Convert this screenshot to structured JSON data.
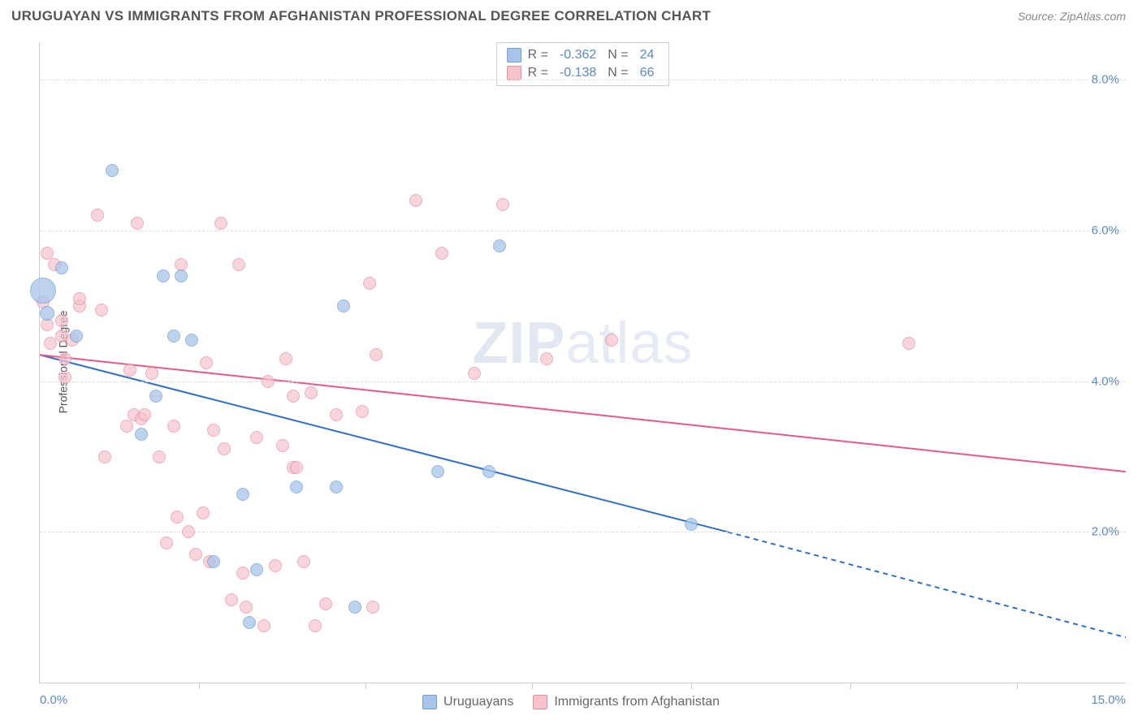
{
  "header": {
    "title": "URUGUAYAN VS IMMIGRANTS FROM AFGHANISTAN PROFESSIONAL DEGREE CORRELATION CHART",
    "source": "Source: ZipAtlas.com"
  },
  "chart": {
    "type": "scatter",
    "ylabel": "Professional Degree",
    "xlim": [
      0,
      15
    ],
    "ylim": [
      0,
      8.5
    ],
    "xtick_labels": {
      "left": "0.0%",
      "right": "15.0%"
    },
    "xtick_positions": [
      2.2,
      4.5,
      6.8,
      9.0,
      11.2,
      13.5
    ],
    "ytick_positions": [
      2.0,
      4.0,
      6.0,
      8.0
    ],
    "ytick_labels": [
      "2.0%",
      "4.0%",
      "6.0%",
      "8.0%"
    ],
    "grid_color": "#dddddd",
    "axis_color": "#cccccc",
    "background_color": "#ffffff",
    "tick_label_color": "#5b8ac5",
    "ylabel_color": "#555555",
    "watermark": {
      "bold": "ZIP",
      "thin": "atlas",
      "color": "#c9d6e8"
    }
  },
  "series": {
    "blue": {
      "label": "Uruguayans",
      "fill": "#a8c5e8",
      "stroke": "#6f9fd6",
      "opacity": 0.75,
      "trend": {
        "color": "#2e6fc9",
        "width": 2,
        "x1": 0,
        "y1": 4.35,
        "x2_solid": 9.5,
        "y2_solid": 2.0,
        "x2_dash": 15,
        "y2_dash": 0.6
      },
      "points": [
        {
          "x": 0.05,
          "y": 5.2,
          "r": 16
        },
        {
          "x": 0.1,
          "y": 4.9,
          "r": 9
        },
        {
          "x": 0.3,
          "y": 5.5,
          "r": 8
        },
        {
          "x": 0.5,
          "y": 4.6,
          "r": 8
        },
        {
          "x": 1.0,
          "y": 6.8,
          "r": 8
        },
        {
          "x": 1.4,
          "y": 3.3,
          "r": 8
        },
        {
          "x": 1.6,
          "y": 3.8,
          "r": 8
        },
        {
          "x": 1.7,
          "y": 5.4,
          "r": 8
        },
        {
          "x": 1.85,
          "y": 4.6,
          "r": 8
        },
        {
          "x": 1.95,
          "y": 5.4,
          "r": 8
        },
        {
          "x": 2.1,
          "y": 4.55,
          "r": 8
        },
        {
          "x": 2.4,
          "y": 1.6,
          "r": 8
        },
        {
          "x": 2.8,
          "y": 2.5,
          "r": 8
        },
        {
          "x": 2.9,
          "y": 0.8,
          "r": 8
        },
        {
          "x": 3.0,
          "y": 1.5,
          "r": 8
        },
        {
          "x": 3.55,
          "y": 2.6,
          "r": 8
        },
        {
          "x": 4.1,
          "y": 2.6,
          "r": 8
        },
        {
          "x": 4.2,
          "y": 5.0,
          "r": 8
        },
        {
          "x": 4.35,
          "y": 1.0,
          "r": 8
        },
        {
          "x": 5.5,
          "y": 2.8,
          "r": 8
        },
        {
          "x": 6.2,
          "y": 2.8,
          "r": 8
        },
        {
          "x": 6.35,
          "y": 5.8,
          "r": 8
        },
        {
          "x": 9.0,
          "y": 2.1,
          "r": 8
        }
      ]
    },
    "pink": {
      "label": "Immigrants from Afghanistan",
      "fill": "#f6c3cd",
      "stroke": "#e68ba0",
      "opacity": 0.7,
      "trend": {
        "color": "#e85a84",
        "width": 2,
        "x1": 0,
        "y1": 4.35,
        "x2_solid": 15,
        "y2_solid": 2.8
      },
      "points": [
        {
          "x": 0.05,
          "y": 5.05,
          "r": 8
        },
        {
          "x": 0.1,
          "y": 5.7,
          "r": 8
        },
        {
          "x": 0.1,
          "y": 4.75,
          "r": 8
        },
        {
          "x": 0.15,
          "y": 4.5,
          "r": 8
        },
        {
          "x": 0.2,
          "y": 5.55,
          "r": 8
        },
        {
          "x": 0.3,
          "y": 4.6,
          "r": 8
        },
        {
          "x": 0.3,
          "y": 4.8,
          "r": 8
        },
        {
          "x": 0.35,
          "y": 4.3,
          "r": 8
        },
        {
          "x": 0.35,
          "y": 4.05,
          "r": 8
        },
        {
          "x": 0.45,
          "y": 4.55,
          "r": 8
        },
        {
          "x": 0.55,
          "y": 5.0,
          "r": 8
        },
        {
          "x": 0.55,
          "y": 5.1,
          "r": 8
        },
        {
          "x": 0.8,
          "y": 6.2,
          "r": 8
        },
        {
          "x": 0.85,
          "y": 4.95,
          "r": 8
        },
        {
          "x": 0.9,
          "y": 3.0,
          "r": 8
        },
        {
          "x": 1.2,
          "y": 3.4,
          "r": 8
        },
        {
          "x": 1.25,
          "y": 4.15,
          "r": 8
        },
        {
          "x": 1.3,
          "y": 3.55,
          "r": 8
        },
        {
          "x": 1.35,
          "y": 6.1,
          "r": 8
        },
        {
          "x": 1.4,
          "y": 3.5,
          "r": 8
        },
        {
          "x": 1.45,
          "y": 3.55,
          "r": 8
        },
        {
          "x": 1.55,
          "y": 4.1,
          "r": 8
        },
        {
          "x": 1.65,
          "y": 3.0,
          "r": 8
        },
        {
          "x": 1.75,
          "y": 1.85,
          "r": 8
        },
        {
          "x": 1.85,
          "y": 3.4,
          "r": 8
        },
        {
          "x": 1.9,
          "y": 2.2,
          "r": 8
        },
        {
          "x": 1.95,
          "y": 5.55,
          "r": 8
        },
        {
          "x": 2.05,
          "y": 2.0,
          "r": 8
        },
        {
          "x": 2.15,
          "y": 1.7,
          "r": 8
        },
        {
          "x": 2.25,
          "y": 2.25,
          "r": 8
        },
        {
          "x": 2.3,
          "y": 4.25,
          "r": 8
        },
        {
          "x": 2.35,
          "y": 1.6,
          "r": 8
        },
        {
          "x": 2.4,
          "y": 3.35,
          "r": 8
        },
        {
          "x": 2.5,
          "y": 6.1,
          "r": 8
        },
        {
          "x": 2.55,
          "y": 3.1,
          "r": 8
        },
        {
          "x": 2.65,
          "y": 1.1,
          "r": 8
        },
        {
          "x": 2.75,
          "y": 5.55,
          "r": 8
        },
        {
          "x": 2.8,
          "y": 1.45,
          "r": 8
        },
        {
          "x": 2.85,
          "y": 1.0,
          "r": 8
        },
        {
          "x": 3.0,
          "y": 3.25,
          "r": 8
        },
        {
          "x": 3.1,
          "y": 0.75,
          "r": 8
        },
        {
          "x": 3.15,
          "y": 4.0,
          "r": 8
        },
        {
          "x": 3.25,
          "y": 1.55,
          "r": 8
        },
        {
          "x": 3.35,
          "y": 3.15,
          "r": 8
        },
        {
          "x": 3.4,
          "y": 4.3,
          "r": 8
        },
        {
          "x": 3.5,
          "y": 3.8,
          "r": 8
        },
        {
          "x": 3.5,
          "y": 2.85,
          "r": 8
        },
        {
          "x": 3.55,
          "y": 2.85,
          "r": 8
        },
        {
          "x": 3.65,
          "y": 1.6,
          "r": 8
        },
        {
          "x": 3.75,
          "y": 3.85,
          "r": 8
        },
        {
          "x": 3.8,
          "y": 0.75,
          "r": 8
        },
        {
          "x": 3.95,
          "y": 1.05,
          "r": 8
        },
        {
          "x": 4.1,
          "y": 3.55,
          "r": 8
        },
        {
          "x": 4.45,
          "y": 3.6,
          "r": 8
        },
        {
          "x": 4.55,
          "y": 5.3,
          "r": 8
        },
        {
          "x": 4.6,
          "y": 1.0,
          "r": 8
        },
        {
          "x": 4.65,
          "y": 4.35,
          "r": 8
        },
        {
          "x": 5.2,
          "y": 6.4,
          "r": 8
        },
        {
          "x": 5.55,
          "y": 5.7,
          "r": 8
        },
        {
          "x": 6.0,
          "y": 4.1,
          "r": 8
        },
        {
          "x": 6.4,
          "y": 6.35,
          "r": 8
        },
        {
          "x": 7.0,
          "y": 4.3,
          "r": 8
        },
        {
          "x": 7.9,
          "y": 4.55,
          "r": 8
        },
        {
          "x": 12.0,
          "y": 4.5,
          "r": 8
        }
      ]
    }
  },
  "stats_legend": {
    "rows": [
      {
        "swatch_fill": "#a8c5e8",
        "swatch_stroke": "#6f9fd6",
        "r_label": "R =",
        "r_val": "-0.362",
        "n_label": "N =",
        "n_val": "24"
      },
      {
        "swatch_fill": "#f6c3cd",
        "swatch_stroke": "#e68ba0",
        "r_label": "R =",
        "r_val": "-0.138",
        "n_label": "N =",
        "n_val": "66"
      }
    ]
  },
  "bottom_legend": {
    "items": [
      {
        "swatch_fill": "#a8c5e8",
        "swatch_stroke": "#6f9fd6",
        "label": "Uruguayans"
      },
      {
        "swatch_fill": "#f6c3cd",
        "swatch_stroke": "#e68ba0",
        "label": "Immigrants from Afghanistan"
      }
    ]
  }
}
